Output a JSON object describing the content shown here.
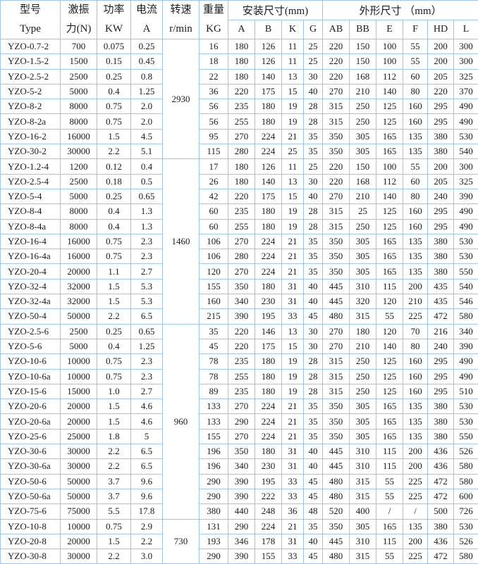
{
  "table": {
    "header": {
      "two_line_columns": [
        {
          "name": "type",
          "line1": "型号",
          "line2": "Type"
        },
        {
          "name": "force",
          "line1": "激振",
          "line2": "力(N)"
        },
        {
          "name": "power",
          "line1": "功率",
          "line2": "KW"
        },
        {
          "name": "current",
          "line1": "电流",
          "line2": "A"
        },
        {
          "name": "speed",
          "line1": "转速",
          "line2": "r/min"
        },
        {
          "name": "weight",
          "line1": "重量",
          "line2": "KG"
        }
      ],
      "group_install": "安装尺寸(mm)",
      "install_cols": [
        "A",
        "B",
        "K",
        "G"
      ],
      "group_outline": "外形尺寸 （mm）",
      "outline_cols": [
        "AB",
        "BB",
        "E",
        "F",
        "HD",
        "L"
      ]
    },
    "speed_groups": [
      {
        "rpm": "2930",
        "row_count": 8
      },
      {
        "rpm": "1460",
        "row_count": 11
      },
      {
        "rpm": "960",
        "row_count": 13
      },
      {
        "rpm": "730",
        "row_count": 3
      }
    ],
    "rows": [
      [
        "YZO-0.7-2",
        "700",
        "0.075",
        "0.25",
        "16",
        "180",
        "126",
        "11",
        "25",
        "220",
        "150",
        "100",
        "55",
        "200",
        "300"
      ],
      [
        "YZO-1.5-2",
        "1500",
        "0.15",
        "0.45",
        "18",
        "180",
        "126",
        "11",
        "25",
        "220",
        "150",
        "100",
        "55",
        "200",
        "300"
      ],
      [
        "YZO-2.5-2",
        "2500",
        "0.25",
        "0.8",
        "22",
        "180",
        "140",
        "13",
        "30",
        "220",
        "168",
        "112",
        "60",
        "205",
        "325"
      ],
      [
        "YZO-5-2",
        "5000",
        "0.4",
        "1.25",
        "36",
        "220",
        "175",
        "15",
        "40",
        "270",
        "210",
        "140",
        "80",
        "220",
        "370"
      ],
      [
        "YZO-8-2",
        "8000",
        "0.75",
        "2.0",
        "56",
        "235",
        "180",
        "19",
        "28",
        "315",
        "250",
        "125",
        "160",
        "295",
        "490"
      ],
      [
        "YZO-8-2a",
        "8000",
        "0.75",
        "2.0",
        "56",
        "255",
        "180",
        "19",
        "28",
        "315",
        "250",
        "125",
        "160",
        "295",
        "490"
      ],
      [
        "YZO-16-2",
        "16000",
        "1.5",
        "4.5",
        "95",
        "270",
        "224",
        "21",
        "35",
        "350",
        "305",
        "165",
        "135",
        "380",
        "530"
      ],
      [
        "YZO-30-2",
        "30000",
        "2.2",
        "5.1",
        "115",
        "280",
        "224",
        "25",
        "35",
        "350",
        "305",
        "165",
        "135",
        "380",
        "540"
      ],
      [
        "YZO-1.2-4",
        "1200",
        "0.12",
        "0.4",
        "17",
        "180",
        "126",
        "11",
        "25",
        "220",
        "150",
        "100",
        "55",
        "200",
        "300"
      ],
      [
        "YZO-2.5-4",
        "2500",
        "0.18",
        "0.5",
        "26",
        "180",
        "140",
        "13",
        "30",
        "220",
        "168",
        "112",
        "60",
        "205",
        "325"
      ],
      [
        "YZO-5-4",
        "5000",
        "0.25",
        "0.65",
        "42",
        "220",
        "175",
        "15",
        "40",
        "270",
        "210",
        "140",
        "80",
        "240",
        "390"
      ],
      [
        "YZO-8-4",
        "8000",
        "0.4",
        "1.3",
        "60",
        "235",
        "180",
        "19",
        "28",
        "315",
        "25",
        "125",
        "160",
        "295",
        "490"
      ],
      [
        "YZO-8-4a",
        "8000",
        "0.4",
        "1.3",
        "60",
        "255",
        "180",
        "19",
        "28",
        "315",
        "250",
        "125",
        "160",
        "295",
        "490"
      ],
      [
        "YZO-16-4",
        "16000",
        "0.75",
        "2.3",
        "106",
        "270",
        "224",
        "21",
        "35",
        "350",
        "305",
        "165",
        "135",
        "380",
        "530"
      ],
      [
        "YZO-16-4a",
        "16000",
        "0.75",
        "2.3",
        "106",
        "280",
        "224",
        "21",
        "35",
        "350",
        "305",
        "165",
        "135",
        "380",
        "530"
      ],
      [
        "YZO-20-4",
        "20000",
        "1.1",
        "2.7",
        "120",
        "270",
        "224",
        "21",
        "35",
        "350",
        "305",
        "165",
        "135",
        "380",
        "550"
      ],
      [
        "YZO-32-4",
        "32000",
        "1.5",
        "5.3",
        "155",
        "350",
        "180",
        "31",
        "40",
        "445",
        "310",
        "115",
        "200",
        "435",
        "540"
      ],
      [
        "YZO-32-4a",
        "32000",
        "1.5",
        "5.3",
        "160",
        "340",
        "230",
        "31",
        "40",
        "445",
        "320",
        "120",
        "210",
        "435",
        "546"
      ],
      [
        "YZO-50-4",
        "50000",
        "2.2",
        "6.5",
        "215",
        "390",
        "195",
        "33",
        "45",
        "480",
        "315",
        "55",
        "225",
        "472",
        "580"
      ],
      [
        "YZO-2.5-6",
        "2500",
        "0.25",
        "0.65",
        "35",
        "220",
        "146",
        "13",
        "30",
        "270",
        "180",
        "120",
        "70",
        "216",
        "340"
      ],
      [
        "YZO-5-6",
        "5000",
        "0.4",
        "1.25",
        "45",
        "220",
        "175",
        "15",
        "30",
        "270",
        "210",
        "140",
        "80",
        "240",
        "390"
      ],
      [
        "YZO-10-6",
        "10000",
        "0.75",
        "2.3",
        "78",
        "235",
        "180",
        "19",
        "28",
        "315",
        "250",
        "125",
        "160",
        "295",
        "490"
      ],
      [
        "YZO-10-6a",
        "10000",
        "0.75",
        "2.3",
        "78",
        "255",
        "180",
        "19",
        "28",
        "315",
        "250",
        "125",
        "160",
        "295",
        "490"
      ],
      [
        "YZO-15-6",
        "15000",
        "1.0",
        "2.7",
        "89",
        "235",
        "180",
        "19",
        "28",
        "315",
        "250",
        "125",
        "160",
        "295",
        "510"
      ],
      [
        "YZO-20-6",
        "20000",
        "1.5",
        "4.6",
        "133",
        "270",
        "224",
        "21",
        "35",
        "350",
        "305",
        "165",
        "135",
        "380",
        "530"
      ],
      [
        "YZO-20-6a",
        "20000",
        "1.5",
        "4.6",
        "133",
        "290",
        "224",
        "21",
        "35",
        "350",
        "305",
        "165",
        "135",
        "380",
        "530"
      ],
      [
        "YZO-25-6",
        "25000",
        "1.8",
        "5",
        "155",
        "270",
        "224",
        "21",
        "35",
        "350",
        "305",
        "165",
        "135",
        "380",
        "550"
      ],
      [
        "YZO-30-6",
        "30000",
        "2.2",
        "6.5",
        "196",
        "350",
        "180",
        "31",
        "40",
        "445",
        "310",
        "115",
        "200",
        "436",
        "526"
      ],
      [
        "YZO-30-6a",
        "30000",
        "2.2",
        "6.5",
        "196",
        "340",
        "230",
        "31",
        "40",
        "445",
        "310",
        "115",
        "200",
        "436",
        "580"
      ],
      [
        "YZO-50-6",
        "50000",
        "3.7",
        "9.6",
        "290",
        "390",
        "195",
        "33",
        "45",
        "480",
        "315",
        "55",
        "225",
        "472",
        "580"
      ],
      [
        "YZO-50-6a",
        "50000",
        "3.7",
        "9.6",
        "290",
        "390",
        "222",
        "33",
        "45",
        "480",
        "315",
        "55",
        "225",
        "472",
        "600"
      ],
      [
        "YZO-75-6",
        "75000",
        "5.5",
        "17.8",
        "380",
        "440",
        "248",
        "36",
        "48",
        "520",
        "400",
        "/",
        "/",
        "500",
        "726"
      ],
      [
        "YZO-10-8",
        "10000",
        "0.75",
        "2.9",
        "131",
        "290",
        "224",
        "21",
        "35",
        "350",
        "305",
        "165",
        "135",
        "380",
        "530"
      ],
      [
        "YZO-20-8",
        "20000",
        "1.5",
        "2.2",
        "193",
        "346",
        "178",
        "31",
        "40",
        "445",
        "310",
        "115",
        "200",
        "436",
        "526"
      ],
      [
        "YZO-30-8",
        "30000",
        "2.2",
        "3.0",
        "290",
        "390",
        "155",
        "33",
        "45",
        "480",
        "315",
        "55",
        "225",
        "472",
        "580"
      ]
    ]
  },
  "colors": {
    "border": "#9ec6ec",
    "text": "#1c1c1c",
    "background": "#ffffff"
  }
}
